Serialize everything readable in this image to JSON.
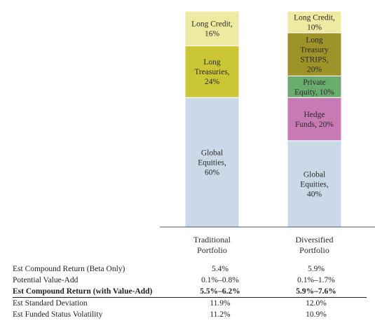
{
  "chart_data": {
    "type": "stacked-bar",
    "unit": "percent",
    "categories": [
      "Traditional Portfolio",
      "Diversified Portfolio"
    ],
    "category_labels": [
      [
        "Traditional",
        "Portfolio"
      ],
      [
        "Diversified",
        "Portfolio"
      ]
    ],
    "bars": [
      {
        "name": "Traditional Portfolio",
        "segments": [
          {
            "label": [
              "Global",
              "Equities,",
              "60%"
            ],
            "value": 60,
            "color": "#cbd8e8"
          },
          {
            "label": [
              "Long",
              "Treasuries,",
              "24%"
            ],
            "value": 24,
            "color": "#cbc634"
          },
          {
            "label": [
              "Long Credit,",
              "16%"
            ],
            "value": 16,
            "color": "#eeeaa2"
          }
        ]
      },
      {
        "name": "Diversified Portfolio",
        "segments": [
          {
            "label": [
              "Global",
              "Equities,",
              "40%"
            ],
            "value": 40,
            "color": "#cbd8e8"
          },
          {
            "label": [
              "Hedge",
              "Funds, 20%"
            ],
            "value": 20,
            "color": "#c87ab4"
          },
          {
            "label": [
              "Private",
              "Equity, 10%"
            ],
            "value": 10,
            "color": "#6aac6e"
          },
          {
            "label": [
              "Long",
              "Treasury",
              "STRIPS,",
              "20%"
            ],
            "value": 20,
            "color": "#9e9328"
          },
          {
            "label": [
              "Long Credit,",
              "10%"
            ],
            "value": 10,
            "color": "#eeeaa2"
          }
        ]
      }
    ],
    "ylim": [
      0,
      100
    ],
    "grid": false,
    "legend": "none",
    "table": {
      "rows": [
        {
          "label": "Est Compound Return (Beta Only)",
          "values": [
            "5.4%",
            "5.9%"
          ],
          "bold": false
        },
        {
          "label": "Potential Value-Add",
          "values": [
            "0.1%–0.8%",
            "0.1%–1.7%"
          ],
          "bold": false
        },
        {
          "label": "Est Compound Return (with Value-Add)",
          "values": [
            "5.5%–6.2%",
            "5.9%–7.6%"
          ],
          "bold": true
        },
        {
          "label": "Est Standard Deviation",
          "values": [
            "11.9%",
            "12.0%"
          ],
          "bold": false
        },
        {
          "label": "Est Funded Status Volatility",
          "values": [
            "11.2%",
            "10.9%"
          ],
          "bold": false
        }
      ]
    }
  }
}
